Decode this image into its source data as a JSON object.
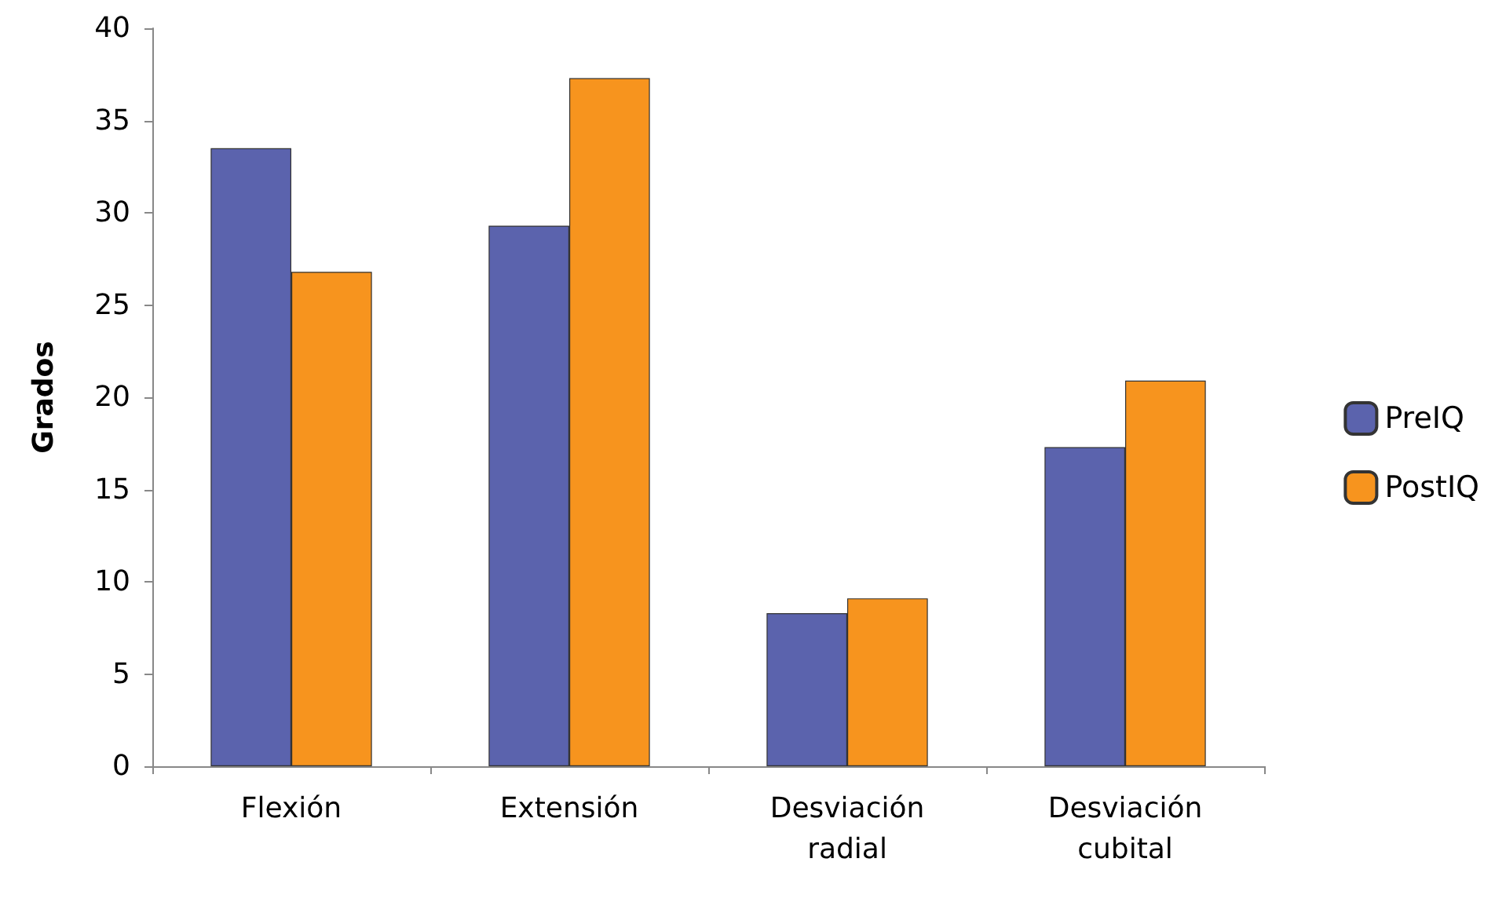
{
  "chart_data": {
    "type": "bar",
    "ylabel": "Grados",
    "categories": [
      "Flexión",
      "Extensión",
      "Desviación\nradial",
      "Desviación\ncubital"
    ],
    "series": [
      {
        "name": "PreIQ",
        "color": "#5b63ad",
        "values": [
          33.5,
          29.3,
          8.3,
          17.3
        ]
      },
      {
        "name": "PostIQ",
        "color": "#f7941e",
        "values": [
          26.8,
          37.3,
          9.1,
          20.9
        ]
      }
    ],
    "ylim": [
      0,
      40
    ],
    "yticks": [
      0,
      5,
      10,
      15,
      20,
      25,
      30,
      35,
      40
    ],
    "grid": false,
    "legend": "right"
  }
}
